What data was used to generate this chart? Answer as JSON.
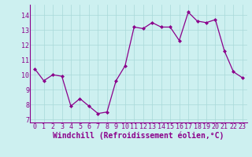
{
  "x": [
    0,
    1,
    2,
    3,
    4,
    5,
    6,
    7,
    8,
    9,
    10,
    11,
    12,
    13,
    14,
    15,
    16,
    17,
    18,
    19,
    20,
    21,
    22,
    23
  ],
  "y": [
    10.4,
    9.6,
    10.0,
    9.9,
    7.9,
    8.4,
    7.9,
    7.4,
    7.5,
    9.6,
    10.6,
    13.2,
    13.1,
    13.5,
    13.2,
    13.2,
    12.3,
    14.2,
    13.6,
    13.5,
    13.7,
    11.6,
    10.2,
    9.8
  ],
  "line_color": "#8B008B",
  "marker": "D",
  "marker_size": 2.0,
  "bg_color": "#cdf0f0",
  "grid_color": "#a8d8d8",
  "xlabel": "Windchill (Refroidissement éolien,°C)",
  "ylim": [
    6.8,
    14.7
  ],
  "xlim": [
    -0.5,
    23.5
  ],
  "yticks": [
    7,
    8,
    9,
    10,
    11,
    12,
    13,
    14
  ],
  "xticks": [
    0,
    1,
    2,
    3,
    4,
    5,
    6,
    7,
    8,
    9,
    10,
    11,
    12,
    13,
    14,
    15,
    16,
    17,
    18,
    19,
    20,
    21,
    22,
    23
  ],
  "axis_color": "#8B008B",
  "label_color": "#8B008B",
  "tick_label_fontsize": 6.0,
  "xlabel_fontsize": 7.0,
  "linewidth": 0.9
}
